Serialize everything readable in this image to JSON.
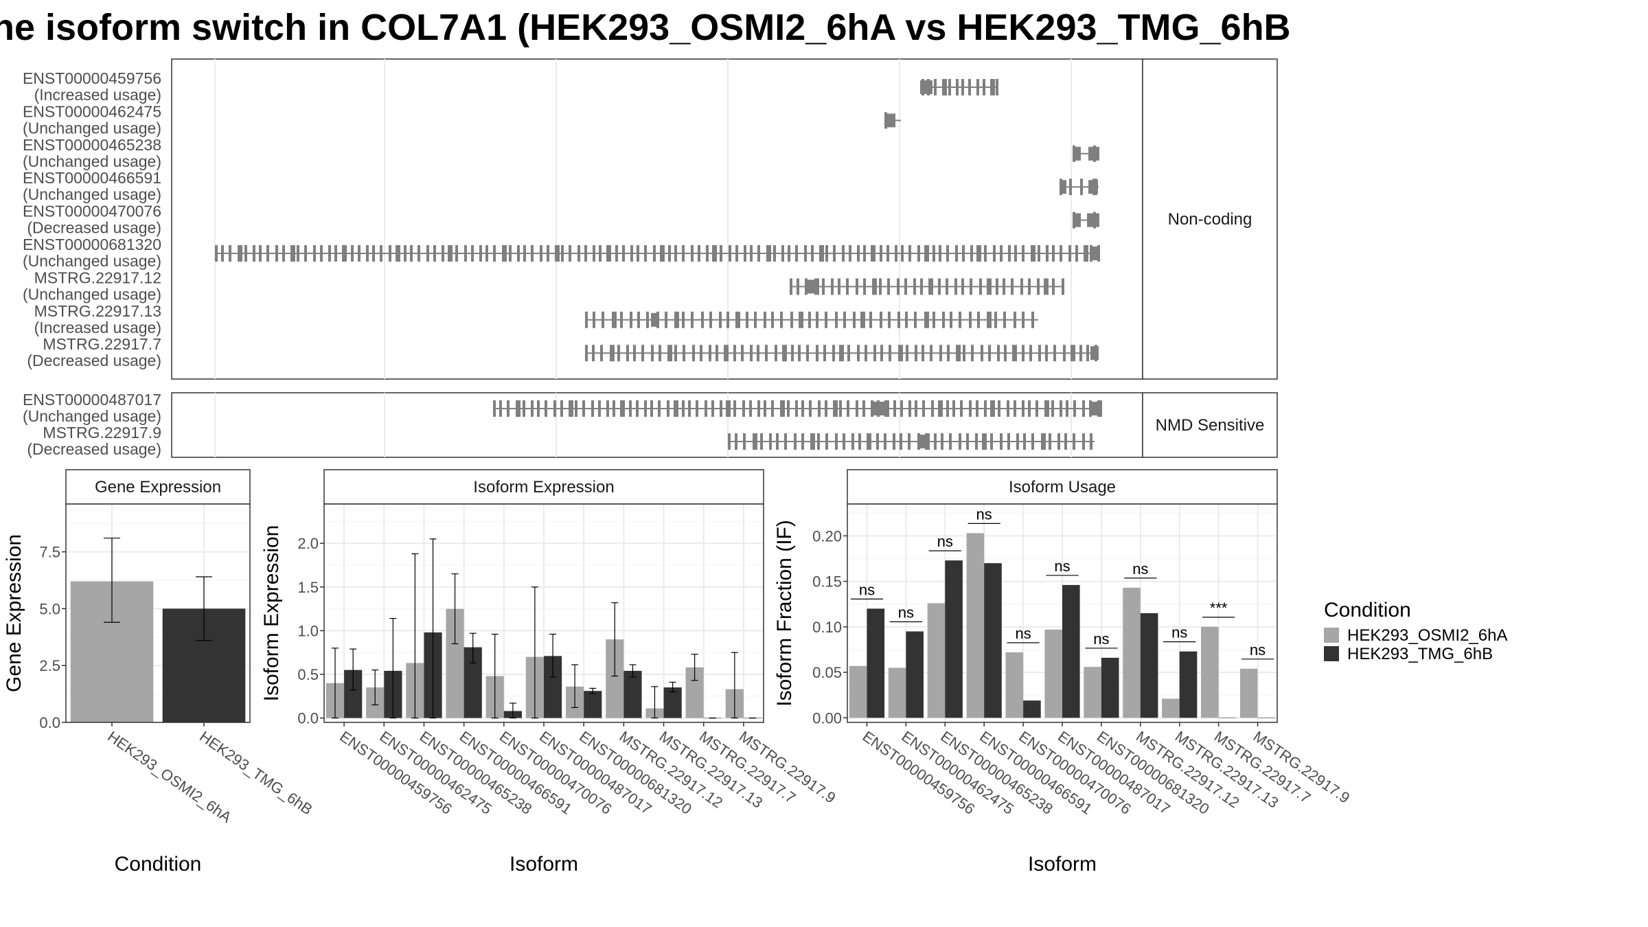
{
  "title": "ne isoform switch in COL7A1 (HEK293_OSMI2_6hA vs HEK293_TMG_6hB",
  "colors": {
    "cond1": "#a6a6a6",
    "cond2": "#333333",
    "exon": "#7f7f7f",
    "grid": "#ebebeb",
    "border": "#333333"
  },
  "structure": {
    "groups": [
      {
        "label": "Non-coding",
        "isoforms": [
          {
            "id": "ENST00000459756",
            "status": "(Increased usage)"
          },
          {
            "id": "ENST00000462475",
            "status": "(Unchanged usage)"
          },
          {
            "id": "ENST00000465238",
            "status": "(Unchanged usage)"
          },
          {
            "id": "ENST00000466591",
            "status": "(Unchanged usage)"
          },
          {
            "id": "ENST00000470076",
            "status": "(Decreased usage)"
          },
          {
            "id": "ENST00000681320",
            "status": "(Unchanged usage)"
          },
          {
            "id": "MSTRG.22917.12",
            "status": "(Unchanged usage)"
          },
          {
            "id": "MSTRG.22917.13",
            "status": "(Increased usage)"
          },
          {
            "id": "MSTRG.22917.7",
            "status": "(Decreased usage)"
          }
        ]
      },
      {
        "label": "NMD Sensitive",
        "isoforms": [
          {
            "id": "ENST00000487017",
            "status": "(Unchanged usage)"
          },
          {
            "id": "MSTRG.22917.9",
            "status": "(Decreased usage)"
          }
        ]
      }
    ]
  },
  "chart_data": [
    {
      "type": "bar",
      "title": "Gene Expression",
      "xlabel": "Condition",
      "ylabel": "Gene Expression",
      "ylim": [
        0,
        9.6
      ],
      "yticks": [
        "0.0",
        "2.5",
        "5.0",
        "7.5"
      ],
      "categories": [
        "HEK293_OSMI2_6hA",
        "HEK293_TMG_6hB"
      ],
      "values": [
        6.2,
        5.0
      ],
      "err_low": [
        4.4,
        3.6
      ],
      "err_high": [
        8.1,
        6.4
      ]
    },
    {
      "type": "bar",
      "title": "Isoform Expression",
      "xlabel": "Isoform",
      "ylabel": "Isoform Expression",
      "ylim": [
        -0.05,
        2.45
      ],
      "yticks": [
        "0.0",
        "0.5",
        "1.0",
        "1.5",
        "2.0"
      ],
      "categories": [
        "ENST00000459756",
        "ENST00000462475",
        "ENST00000465238",
        "ENST00000466591",
        "ENST00000470076",
        "ENST00000487017",
        "ENST00000681320",
        "MSTRG.22917.12",
        "MSTRG.22917.13",
        "MSTRG.22917.7",
        "MSTRG.22917.9"
      ],
      "series": [
        {
          "name": "HEK293_OSMI2_6hA",
          "values": [
            0.4,
            0.35,
            0.63,
            1.25,
            0.48,
            0.7,
            0.36,
            0.9,
            0.11,
            0.58,
            0.33
          ],
          "err_low": [
            0.0,
            0.15,
            0.0,
            0.85,
            0.0,
            0.0,
            0.12,
            0.48,
            0.0,
            0.43,
            0.0
          ],
          "err_high": [
            0.8,
            0.55,
            1.88,
            1.65,
            0.96,
            1.5,
            0.61,
            1.32,
            0.36,
            0.73,
            0.75
          ]
        },
        {
          "name": "HEK293_TMG_6hB",
          "values": [
            0.55,
            0.54,
            0.98,
            0.81,
            0.08,
            0.71,
            0.31,
            0.54,
            0.35,
            0.0,
            0.0
          ],
          "err_low": [
            0.32,
            0.0,
            0.0,
            0.63,
            0.0,
            0.47,
            0.28,
            0.47,
            0.3,
            0.0,
            0.0
          ],
          "err_high": [
            0.79,
            1.14,
            2.05,
            0.97,
            0.17,
            0.96,
            0.34,
            0.61,
            0.41,
            0.0,
            0.0
          ]
        }
      ]
    },
    {
      "type": "bar",
      "title": "Isoform Usage",
      "xlabel": "Isoform",
      "ylabel": "Isoform Fraction (IF)",
      "ylim": [
        -0.005,
        0.235
      ],
      "yticks": [
        "0.00",
        "0.05",
        "0.10",
        "0.15",
        "0.20"
      ],
      "categories": [
        "ENST00000459756",
        "ENST00000462475",
        "ENST00000465238",
        "ENST00000466591",
        "ENST00000470076",
        "ENST00000487017",
        "ENST00000681320",
        "MSTRG.22917.12",
        "MSTRG.22917.13",
        "MSTRG.22917.7",
        "MSTRG.22917.9"
      ],
      "series": [
        {
          "name": "HEK293_OSMI2_6hA",
          "values": [
            0.057,
            0.055,
            0.126,
            0.203,
            0.072,
            0.097,
            0.056,
            0.143,
            0.021,
            0.1,
            0.054
          ]
        },
        {
          "name": "HEK293_TMG_6hB",
          "values": [
            0.12,
            0.095,
            0.173,
            0.17,
            0.019,
            0.146,
            0.066,
            0.115,
            0.073,
            0.0,
            0.0
          ]
        }
      ],
      "significance": [
        "ns",
        "ns",
        "ns",
        "ns",
        "ns",
        "ns",
        "ns",
        "ns",
        "ns",
        "***",
        "ns"
      ]
    }
  ],
  "legend": {
    "title": "Condition",
    "entries": [
      "HEK293_OSMI2_6hA",
      "HEK293_TMG_6hB"
    ]
  }
}
